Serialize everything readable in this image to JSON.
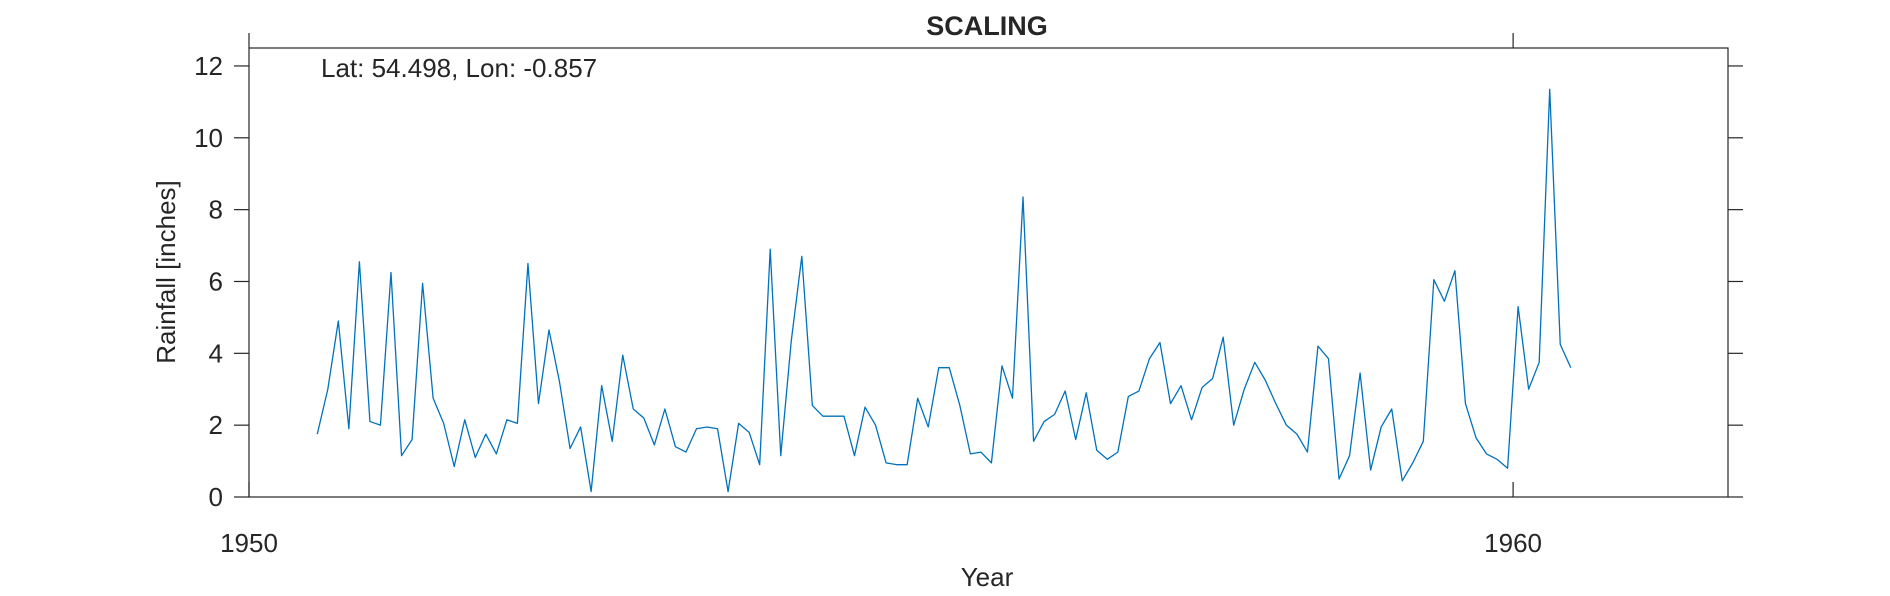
{
  "chart_data": {
    "type": "line",
    "title": "SCALING",
    "annotation": "Lat: 54.498, Lon: -0.857",
    "xlabel": "Year",
    "ylabel": "Rainfall [inches]",
    "xlim": [
      1950,
      1961.7
    ],
    "ylim": [
      0,
      12.5
    ],
    "xticks": [
      1950,
      1960
    ],
    "xtick_labels": [
      "1950",
      "1960"
    ],
    "yticks": [
      0,
      2,
      4,
      6,
      8,
      10,
      12
    ],
    "ytick_labels": [
      "0",
      "2",
      "4",
      "6",
      "8",
      "10",
      "12"
    ],
    "grid": false,
    "line_color": "#0072bd",
    "series": [
      {
        "x_start": 1950.54,
        "x_step": 0.08333,
        "values": [
          1.75,
          3.0,
          4.9,
          1.9,
          6.55,
          2.1,
          2.0,
          6.25,
          1.15,
          1.6,
          5.95,
          2.75,
          2.05,
          0.85,
          2.15,
          1.1,
          1.75,
          1.2,
          2.15,
          2.05,
          6.5,
          2.6,
          4.65,
          3.2,
          1.35,
          1.95,
          0.15,
          3.1,
          1.55,
          3.95,
          2.45,
          2.2,
          1.45,
          2.45,
          1.4,
          1.25,
          1.9,
          1.95,
          1.9,
          0.15,
          2.05,
          1.8,
          0.9,
          6.9,
          1.15,
          4.35,
          6.7,
          2.55,
          2.25,
          2.25,
          2.25,
          1.15,
          2.5,
          2.0,
          0.95,
          0.9,
          0.9,
          2.75,
          1.95,
          3.6,
          3.6,
          2.55,
          1.2,
          1.25,
          0.95,
          3.65,
          2.75,
          8.35,
          1.55,
          2.1,
          2.3,
          2.95,
          1.6,
          2.9,
          1.3,
          1.05,
          1.25,
          2.8,
          2.95,
          3.85,
          4.3,
          2.6,
          3.1,
          2.15,
          3.05,
          3.3,
          4.45,
          2.0,
          3.0,
          3.75,
          3.25,
          2.6,
          2.0,
          1.75,
          1.25,
          4.2,
          3.85,
          0.5,
          1.15,
          3.45,
          0.75,
          1.95,
          2.45,
          0.45,
          0.95,
          1.55,
          6.05,
          5.45,
          6.3,
          2.6,
          1.65,
          1.2,
          1.05,
          0.8,
          5.3,
          3.0,
          3.75,
          11.35,
          4.25,
          3.6
        ]
      }
    ]
  }
}
